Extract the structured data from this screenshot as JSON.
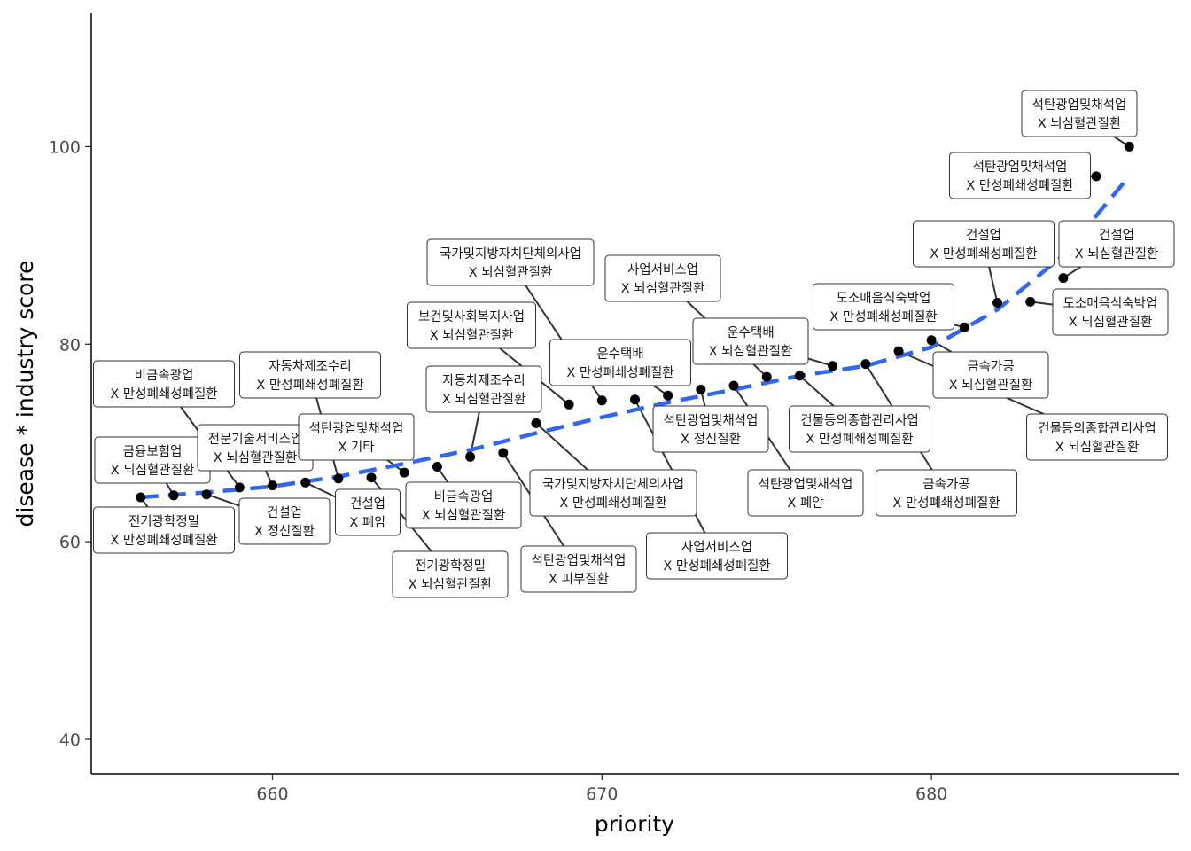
{
  "chart_data": {
    "type": "scatter",
    "xlabel": "priority",
    "ylabel": "disease * industry score",
    "xlim": [
      654.5,
      687.5
    ],
    "ylim": [
      36.5,
      113.5
    ],
    "x_ticks": [
      660,
      670,
      680
    ],
    "y_ticks": [
      40,
      60,
      80,
      100
    ],
    "grid": false,
    "colors": {
      "points": "#000000",
      "trend": "#3366ee",
      "labels": "#1a1a1a"
    },
    "trend_line": {
      "style": "dashed",
      "x": [
        656,
        658,
        660,
        662,
        664,
        666,
        668,
        670,
        672,
        674,
        676,
        678,
        680,
        682,
        684,
        686
      ],
      "y": [
        64.5,
        65.0,
        65.6,
        66.6,
        67.9,
        69.3,
        71.0,
        72.6,
        74.1,
        75.4,
        76.8,
        77.8,
        79.7,
        83.5,
        89.0,
        97.0
      ]
    },
    "points": [
      {
        "x": 656,
        "y": 64.5,
        "label": [
          "전기광학정밀",
          "X 만성폐쇄성폐질환"
        ]
      },
      {
        "x": 657,
        "y": 64.7,
        "label": [
          "금융보험업",
          "X 뇌심혈관질환"
        ]
      },
      {
        "x": 658,
        "y": 64.8,
        "label": [
          "건설업",
          "X 정신질환"
        ]
      },
      {
        "x": 659,
        "y": 65.5,
        "label": [
          "비금속광업",
          "X 만성폐쇄성폐질환"
        ]
      },
      {
        "x": 660,
        "y": 65.7,
        "label": [
          "전문기술서비스업",
          "X 뇌심혈관질환"
        ]
      },
      {
        "x": 661,
        "y": 66.0,
        "label": [
          "건설업",
          "X 폐암"
        ]
      },
      {
        "x": 662,
        "y": 66.4,
        "label": [
          "자동차제조수리",
          "X 만성폐쇄성폐질환"
        ]
      },
      {
        "x": 663,
        "y": 66.5,
        "label": [
          "전기광학정밀",
          "X 뇌심혈관질환"
        ]
      },
      {
        "x": 664,
        "y": 67.0,
        "label": [
          "석탄광업및채석업",
          "X 기타"
        ]
      },
      {
        "x": 665,
        "y": 67.6,
        "label": [
          "비금속광업",
          "X 뇌심혈관질환"
        ]
      },
      {
        "x": 666,
        "y": 68.6,
        "label": [
          "자동차제조수리",
          "X 뇌심혈관질환"
        ]
      },
      {
        "x": 667,
        "y": 69.0,
        "label": [
          "석탄광업및채석업",
          "X 피부질환"
        ]
      },
      {
        "x": 668,
        "y": 72.0,
        "label": [
          "국가및지방자치단체의사업",
          "X 만성폐쇄성폐질환"
        ]
      },
      {
        "x": 669,
        "y": 73.9,
        "label": [
          "보건및사회복지사업",
          "X 뇌심혈관질환"
        ]
      },
      {
        "x": 670,
        "y": 74.3,
        "label": [
          "국가및지방자치단체의사업",
          "X 뇌심혈관질환"
        ]
      },
      {
        "x": 671,
        "y": 74.4,
        "label": [
          "사업서비스업",
          "X 만성폐쇄성폐질환"
        ]
      },
      {
        "x": 672,
        "y": 74.8,
        "label": [
          "운수택배",
          "X 만성폐쇄성폐질환"
        ]
      },
      {
        "x": 673,
        "y": 75.4,
        "label": [
          "석탄광업및채석업",
          "X 정신질환"
        ]
      },
      {
        "x": 674,
        "y": 75.8,
        "label": [
          "석탄광업및채석업",
          "X 폐암"
        ]
      },
      {
        "x": 675,
        "y": 76.7,
        "label": [
          "사업서비스업",
          "X 뇌심혈관질환"
        ]
      },
      {
        "x": 676,
        "y": 76.8,
        "label": [
          "건물등의종합관리사업",
          "X 만성폐쇄성폐질환"
        ]
      },
      {
        "x": 677,
        "y": 77.8,
        "label": [
          "운수택배",
          "X 뇌심혈관질환"
        ]
      },
      {
        "x": 678,
        "y": 78.0,
        "label": [
          "금속가공",
          "X 만성폐쇄성폐질환"
        ]
      },
      {
        "x": 679,
        "y": 79.3,
        "label": [
          "건물등의종합관리사업",
          "X 뇌심혈관질환"
        ]
      },
      {
        "x": 680,
        "y": 80.4,
        "label": [
          "금속가공",
          "X 뇌심혈관질환"
        ]
      },
      {
        "x": 681,
        "y": 81.7,
        "label": [
          "도소매음식숙박업",
          "X 만성폐쇄성폐질환"
        ]
      },
      {
        "x": 682,
        "y": 84.2,
        "label": [
          "건설업",
          "X 만성폐쇄성폐질환"
        ]
      },
      {
        "x": 683,
        "y": 84.3,
        "label": [
          "도소매음식숙박업",
          "X 뇌심혈관질환"
        ]
      },
      {
        "x": 684,
        "y": 86.7,
        "label": [
          "건설업",
          "X 뇌심혈관질환"
        ]
      },
      {
        "x": 685,
        "y": 97.0,
        "label": [
          "석탄광업및채석업",
          "X 만성폐쇄성폐질환"
        ]
      },
      {
        "x": 686,
        "y": 100.0,
        "label": [
          "석탄광업및채석업",
          "X 뇌심혈관질환"
        ]
      }
    ]
  }
}
